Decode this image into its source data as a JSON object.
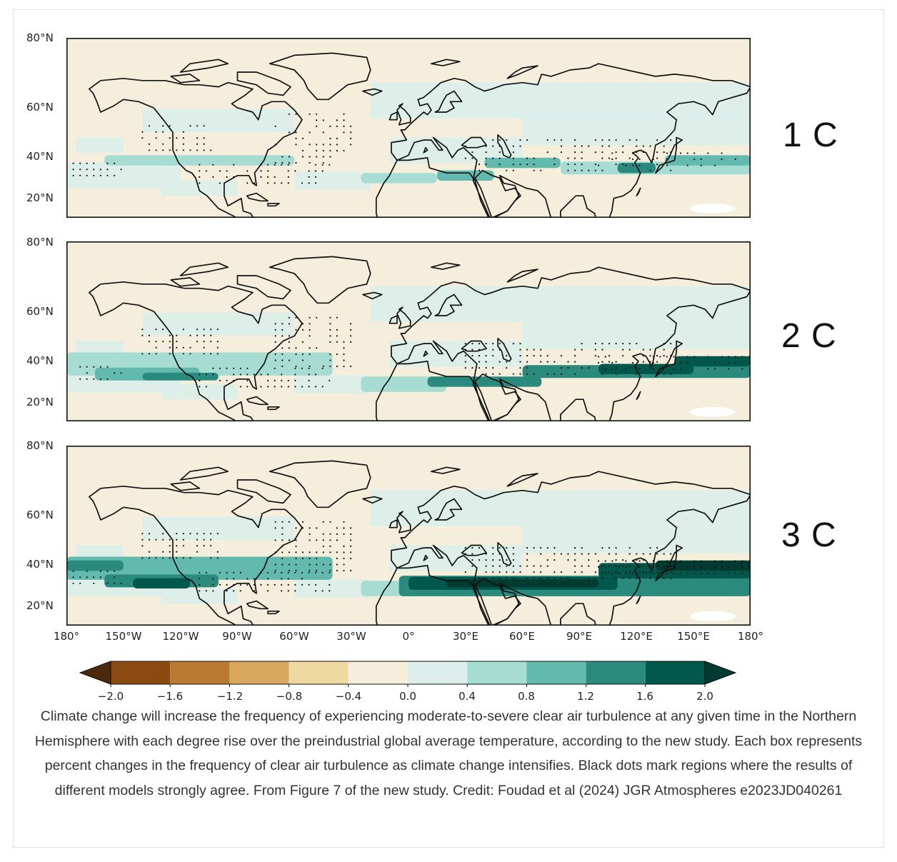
{
  "panels": [
    {
      "label": "1 C",
      "lat_ticks": [
        "80°N",
        "60°N",
        "40°N",
        "20°N"
      ],
      "band_strength": 1
    },
    {
      "label": "2 C",
      "lat_ticks": [
        "80°N",
        "60°N",
        "40°N",
        "20°N"
      ],
      "band_strength": 2
    },
    {
      "label": "3 C",
      "lat_ticks": [
        "80°N",
        "60°N",
        "40°N",
        "20°N"
      ],
      "band_strength": 3
    }
  ],
  "lon_ticks": [
    "180°",
    "150°W",
    "120°W",
    "90°W",
    "60°W",
    "30°W",
    "0°",
    "30°E",
    "60°E",
    "90°E",
    "120°E",
    "150°E",
    "180°"
  ],
  "colorbar": {
    "ticks": [
      "−2.0",
      "−1.6",
      "−1.2",
      "−0.8",
      "−0.4",
      "0.0",
      "0.4",
      "0.8",
      "1.2",
      "1.6",
      "2.0"
    ],
    "colors": [
      "#4a2a0b",
      "#8a4a12",
      "#b87a30",
      "#d7a85e",
      "#efd9a2",
      "#f6eedc",
      "#dceeea",
      "#a6dcd2",
      "#62b9ad",
      "#2a8a7e",
      "#00574b",
      "#003a30"
    ]
  },
  "caption": "Climate change will increase the frequency of experiencing moderate-to-severe clear air turbulence at any given time in the Northern Hemisphere with each degree rise over the preindustrial global average temperature, according to the new study. Each box represents percent changes in the frequency of clear air turbulence as climate change intensifies. Black dots mark regions where the results of different models strongly agree. From Figure 7 of the new study. Credit: Foudad et al (2024) JGR Atmospheres e2023JD040261"
}
